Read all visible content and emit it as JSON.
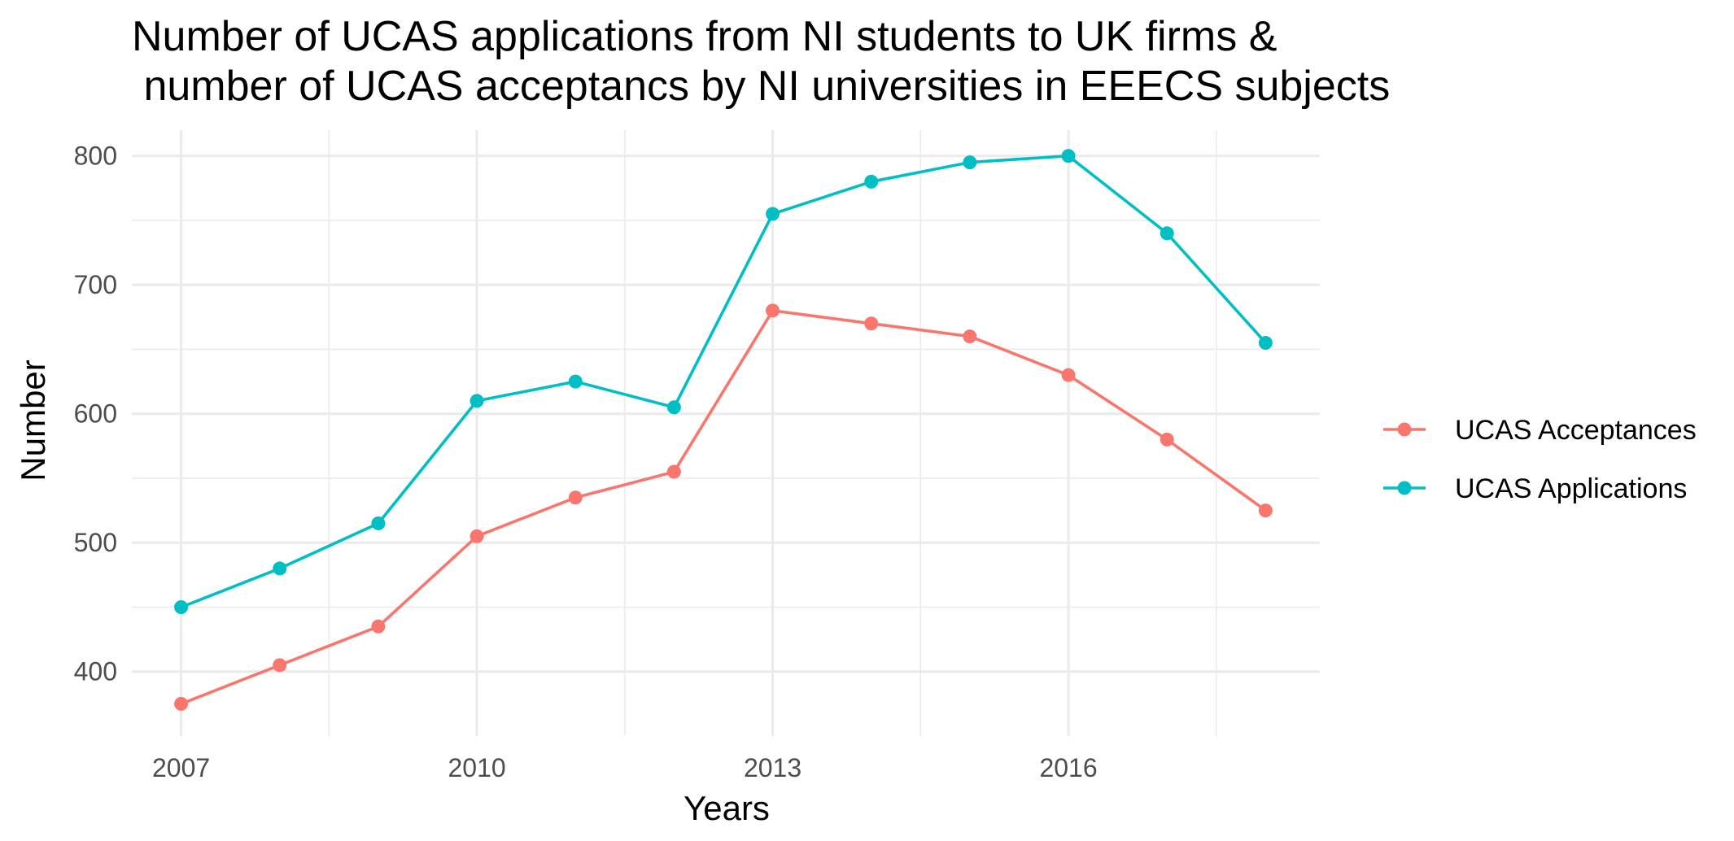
{
  "chart_data": {
    "type": "line",
    "title_lines": [
      "Number of UCAS applications from NI students to UK firms &",
      " number of UCAS acceptancs by NI universities in EEECS subjects"
    ],
    "xlabel": "Years",
    "ylabel": "Number",
    "x": [
      2007,
      2008,
      2009,
      2010,
      2011,
      2012,
      2013,
      2014,
      2015,
      2016,
      2017,
      2018
    ],
    "x_ticks": [
      "2007",
      "2010",
      "2013",
      "2016"
    ],
    "y_ticks": [
      "400",
      "500",
      "600",
      "700",
      "800"
    ],
    "xlim": [
      2006.5,
      2018.55
    ],
    "ylim": [
      350,
      820
    ],
    "grid": true,
    "legend_position": "right",
    "series": [
      {
        "name": "UCAS Acceptances",
        "color": "#F8766D",
        "values": [
          375,
          405,
          435,
          505,
          535,
          555,
          680,
          670,
          660,
          630,
          580,
          525
        ]
      },
      {
        "name": "UCAS Applications",
        "color": "#00BFC4",
        "values": [
          450,
          480,
          515,
          610,
          625,
          605,
          755,
          780,
          795,
          800,
          740,
          655
        ]
      }
    ]
  }
}
